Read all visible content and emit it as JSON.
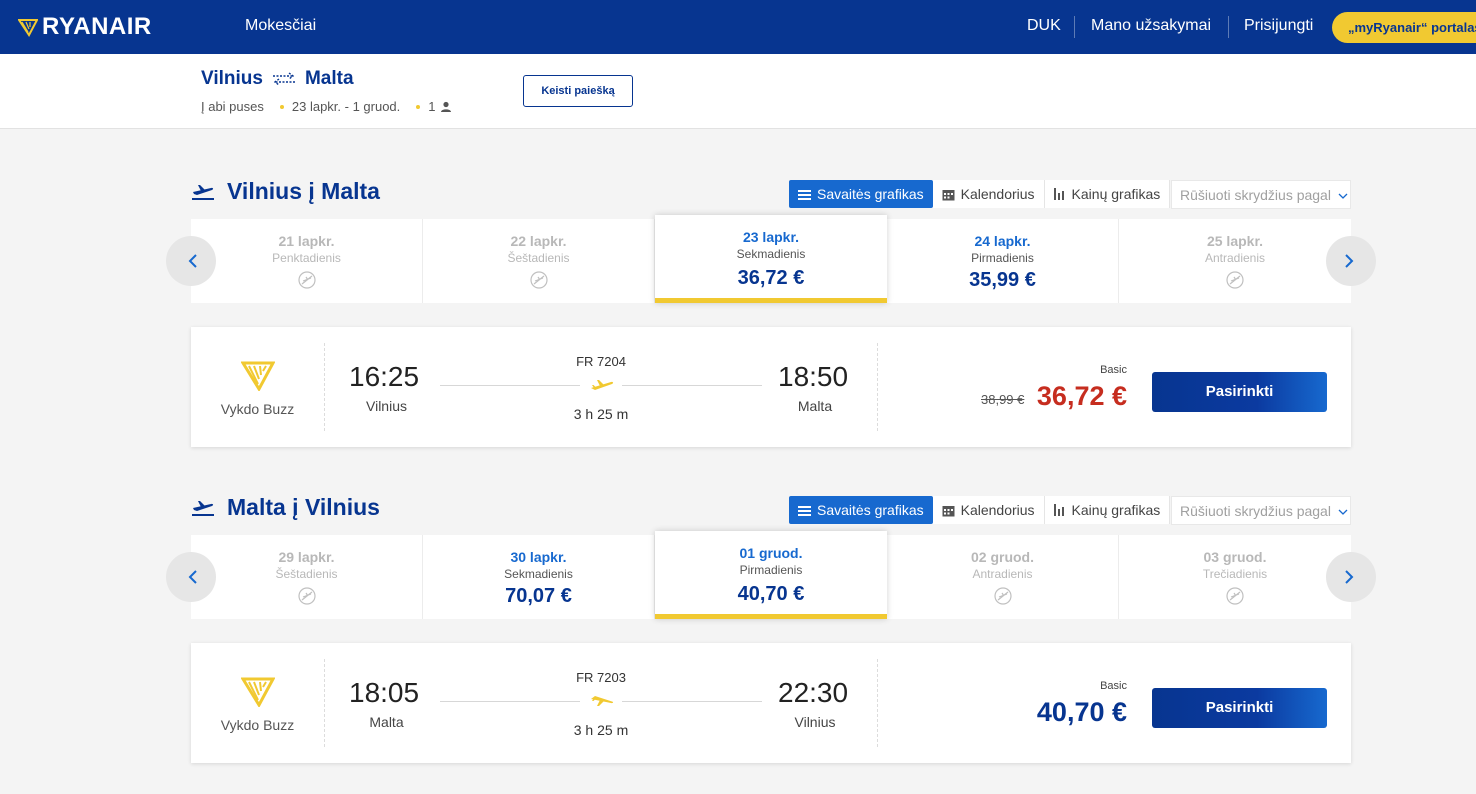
{
  "nav": {
    "brand": "RYANAIR",
    "fees": "Mokesčiai",
    "faq": "DUK",
    "bookings": "Mano užsakymai",
    "login": "Prisijungti",
    "portal": "„myRyanair“ portalas"
  },
  "summary": {
    "origin": "Vilnius",
    "destination": "Malta",
    "trip_type": "Į abi puses",
    "dates": "23 lapkr. - 1 gruod.",
    "passengers": "1",
    "change_search": "Keisti paiešką"
  },
  "views": {
    "weekly": "Savaitės grafikas",
    "calendar": "Kalendorius",
    "price_chart": "Kainų grafikas",
    "sort_placeholder": "Rūšiuoti skrydžius pagal"
  },
  "outbound": {
    "title": "Vilnius į Malta",
    "dates": [
      {
        "label": "21 lapkr.",
        "day": "Penktadienis",
        "price": "",
        "state": "disabled"
      },
      {
        "label": "22 lapkr.",
        "day": "Šeštadienis",
        "price": "",
        "state": "disabled"
      },
      {
        "label": "23 lapkr.",
        "day": "Sekmadienis",
        "price": "36,72 €",
        "state": "selected"
      },
      {
        "label": "24 lapkr.",
        "day": "Pirmadienis",
        "price": "35,99 €",
        "state": "avail"
      },
      {
        "label": "25 lapkr.",
        "day": "Antradienis",
        "price": "",
        "state": "disabled"
      }
    ],
    "flight": {
      "operator": "Vykdo Buzz",
      "depart_time": "16:25",
      "depart_city": "Vilnius",
      "flight_number": "FR 7204",
      "duration": "3 h 25 m",
      "arrive_time": "18:50",
      "arrive_city": "Malta",
      "fare_type": "Basic",
      "old_price": "38,99 €",
      "price": "36,72 €",
      "select": "Pasirinkti"
    }
  },
  "inbound": {
    "title": "Malta į Vilnius",
    "dates": [
      {
        "label": "29 lapkr.",
        "day": "Šeštadienis",
        "price": "",
        "state": "disabled"
      },
      {
        "label": "30 lapkr.",
        "day": "Sekmadienis",
        "price": "70,07 €",
        "state": "avail"
      },
      {
        "label": "01 gruod.",
        "day": "Pirmadienis",
        "price": "40,70 €",
        "state": "selected"
      },
      {
        "label": "02 gruod.",
        "day": "Antradienis",
        "price": "",
        "state": "disabled"
      },
      {
        "label": "03 gruod.",
        "day": "Trečiadienis",
        "price": "",
        "state": "disabled"
      }
    ],
    "flight": {
      "operator": "Vykdo Buzz",
      "depart_time": "18:05",
      "depart_city": "Malta",
      "flight_number": "FR 7203",
      "duration": "3 h 25 m",
      "arrive_time": "22:30",
      "arrive_city": "Vilnius",
      "fare_type": "Basic",
      "price": "40,70 €",
      "select": "Pasirinkti"
    }
  },
  "colors": {
    "brand_blue": "#073590",
    "accent_blue": "#1769cf",
    "yellow": "#f1c931",
    "sale_red": "#c62d1f"
  }
}
